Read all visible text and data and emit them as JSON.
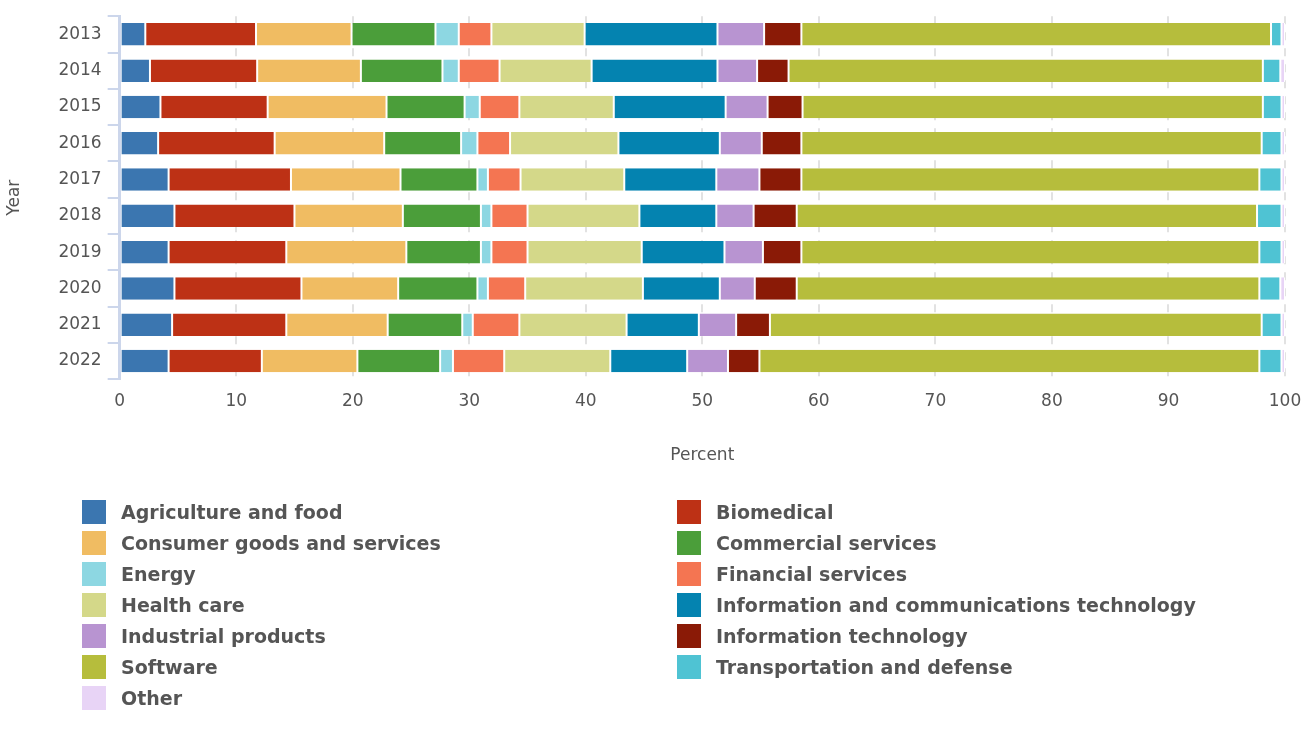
{
  "chart_data": {
    "type": "bar",
    "orientation": "horizontal",
    "stacked": true,
    "xlabel": "Percent",
    "ylabel": "Year",
    "categories": [
      "2013",
      "2014",
      "2015",
      "2016",
      "2017",
      "2018",
      "2019",
      "2020",
      "2021",
      "2022"
    ],
    "xlim": [
      0,
      100
    ],
    "xticks": [
      0,
      10,
      20,
      30,
      40,
      50,
      60,
      70,
      80,
      90,
      100
    ],
    "grid": "x",
    "legend": "bottom",
    "series": [
      {
        "name": "Agriculture and food",
        "color": "#3b76b0",
        "values": [
          2.2,
          2.6,
          3.5,
          3.3,
          4.2,
          4.7,
          4.2,
          4.7,
          4.5,
          4.2
        ]
      },
      {
        "name": "Biomedical",
        "color": "#bd3115",
        "values": [
          9.5,
          9.2,
          9.2,
          10.0,
          10.5,
          10.3,
          10.1,
          10.9,
          9.8,
          8.0
        ]
      },
      {
        "name": "Consumer goods and services",
        "color": "#f0bc62",
        "values": [
          8.2,
          8.9,
          10.2,
          9.4,
          9.4,
          9.3,
          10.3,
          8.3,
          8.7,
          8.2
        ]
      },
      {
        "name": "Commercial services",
        "color": "#4b9e3a",
        "values": [
          7.2,
          7.0,
          6.7,
          6.6,
          6.6,
          6.7,
          6.4,
          6.8,
          6.4,
          7.1
        ]
      },
      {
        "name": "Energy",
        "color": "#8dd7e2",
        "values": [
          2.0,
          1.4,
          1.3,
          1.4,
          0.9,
          0.9,
          0.9,
          0.9,
          0.9,
          1.1
        ]
      },
      {
        "name": "Financial services",
        "color": "#f47552",
        "values": [
          2.8,
          3.5,
          3.4,
          2.8,
          2.8,
          3.1,
          3.1,
          3.2,
          4.0,
          4.4
        ]
      },
      {
        "name": "Health care",
        "color": "#d4d889",
        "values": [
          8.0,
          7.9,
          8.1,
          9.3,
          8.9,
          9.6,
          9.8,
          10.1,
          9.2,
          9.1
        ]
      },
      {
        "name": "Information and communications technology",
        "color": "#0483b0",
        "values": [
          11.4,
          10.8,
          9.6,
          8.7,
          7.9,
          6.6,
          7.1,
          6.6,
          6.2,
          6.6
        ]
      },
      {
        "name": "Industrial products",
        "color": "#b894d1",
        "values": [
          4.0,
          3.4,
          3.6,
          3.6,
          3.7,
          3.2,
          3.3,
          3.0,
          3.2,
          3.5
        ]
      },
      {
        "name": "Information technology",
        "color": "#8a1a06",
        "values": [
          3.2,
          2.7,
          3.0,
          3.4,
          3.6,
          3.7,
          3.3,
          3.6,
          2.9,
          2.7
        ]
      },
      {
        "name": "Software",
        "color": "#b6bd3c",
        "values": [
          40.3,
          40.7,
          39.5,
          39.5,
          39.3,
          39.5,
          39.3,
          39.7,
          42.2,
          42.9
        ]
      },
      {
        "name": "Transportation and defense",
        "color": "#4fc3d3",
        "values": [
          0.9,
          1.5,
          1.6,
          1.7,
          1.9,
          2.1,
          1.9,
          1.8,
          1.7,
          1.9
        ]
      },
      {
        "name": "Other",
        "color": "#e8d4f6",
        "values": [
          0.3,
          0.4,
          0.3,
          0.3,
          0.3,
          0.3,
          0.3,
          0.4,
          0.3,
          0.3
        ]
      }
    ]
  }
}
